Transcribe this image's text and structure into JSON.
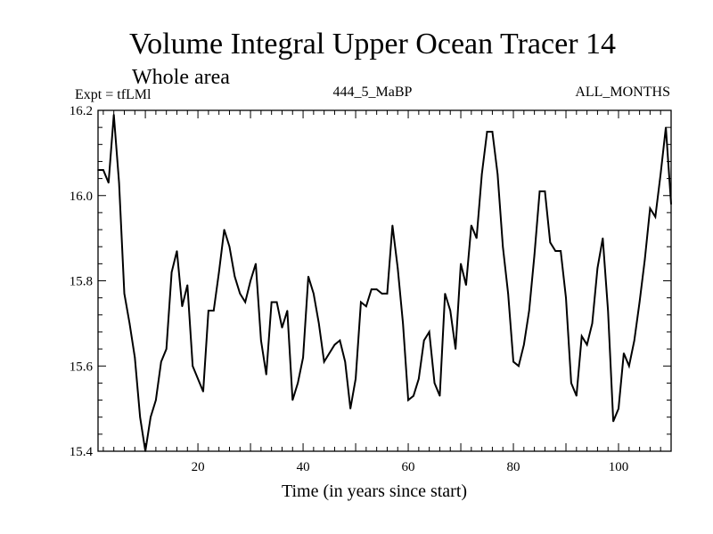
{
  "chart_data": {
    "type": "line",
    "title": "Volume Integral Upper Ocean Tracer 14",
    "subtitle": "Whole area",
    "expt_label": "Expt = tfLMl",
    "run_label": "444_5_MaBP",
    "months_label": "ALL_MONTHS",
    "xlabel": "Time (in years since start)",
    "ylabel": "",
    "xlim": [
      1,
      110
    ],
    "ylim": [
      15.4,
      16.2
    ],
    "x_ticks": [
      20,
      40,
      60,
      80,
      100
    ],
    "y_ticks": [
      "15.4",
      "15.6",
      "15.8",
      "16.0",
      "16.2"
    ],
    "series": [
      {
        "name": "Upper Ocean Tracer 14",
        "x": [
          1,
          2,
          3,
          4,
          5,
          6,
          7,
          8,
          9,
          10,
          11,
          12,
          13,
          14,
          15,
          16,
          17,
          18,
          19,
          20,
          21,
          22,
          23,
          24,
          25,
          26,
          27,
          28,
          29,
          30,
          31,
          32,
          33,
          34,
          35,
          36,
          37,
          38,
          39,
          40,
          41,
          42,
          43,
          44,
          45,
          46,
          47,
          48,
          49,
          50,
          51,
          52,
          53,
          54,
          55,
          56,
          57,
          58,
          59,
          60,
          61,
          62,
          63,
          64,
          65,
          66,
          67,
          68,
          69,
          70,
          71,
          72,
          73,
          74,
          75,
          76,
          77,
          78,
          79,
          80,
          81,
          82,
          83,
          84,
          85,
          86,
          87,
          88,
          89,
          90,
          91,
          92,
          93,
          94,
          95,
          96,
          97,
          98,
          99,
          100,
          101,
          102,
          103,
          104,
          105,
          106,
          107,
          108,
          109,
          110
        ],
        "y": [
          16.06,
          16.06,
          16.03,
          16.19,
          16.03,
          15.77,
          15.7,
          15.62,
          15.48,
          15.4,
          15.48,
          15.52,
          15.61,
          15.64,
          15.82,
          15.87,
          15.74,
          15.79,
          15.6,
          15.57,
          15.54,
          15.73,
          15.73,
          15.82,
          15.92,
          15.88,
          15.81,
          15.77,
          15.75,
          15.8,
          15.84,
          15.66,
          15.58,
          15.75,
          15.75,
          15.69,
          15.73,
          15.52,
          15.56,
          15.62,
          15.81,
          15.77,
          15.7,
          15.61,
          15.63,
          15.65,
          15.66,
          15.61,
          15.5,
          15.57,
          15.75,
          15.74,
          15.78,
          15.78,
          15.77,
          15.77,
          15.93,
          15.83,
          15.7,
          15.52,
          15.53,
          15.57,
          15.66,
          15.68,
          15.56,
          15.53,
          15.77,
          15.73,
          15.64,
          15.84,
          15.79,
          15.93,
          15.9,
          16.05,
          16.15,
          16.15,
          16.05,
          15.88,
          15.77,
          15.61,
          15.6,
          15.65,
          15.73,
          15.86,
          16.01,
          16.01,
          15.89,
          15.87,
          15.87,
          15.76,
          15.56,
          15.53,
          15.67,
          15.65,
          15.7,
          15.83,
          15.9,
          15.73,
          15.47,
          15.5,
          15.63,
          15.6,
          15.66,
          15.75,
          15.85,
          15.97,
          15.95,
          16.05,
          16.16,
          15.98
        ]
      }
    ]
  }
}
